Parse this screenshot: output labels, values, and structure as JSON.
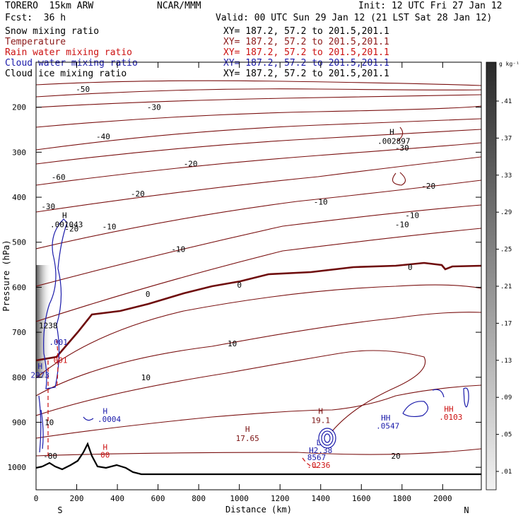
{
  "header": {
    "model": "TORERO  15km ARW",
    "center": "NCAR/MMM",
    "init": "Init: 12 UTC Fri 27 Jan 12",
    "fcst": "Fcst:  36 h",
    "valid": "Valid: 00 UTC Sun 29 Jan 12 (21 LST Sat 28 Jan 12)"
  },
  "fields": [
    {
      "name": "Snow mixing ratio",
      "color": "#000000",
      "xy": "XY= 187.2, 57.2 to 201.5,201.1"
    },
    {
      "name": "Temperature",
      "color": "#8b1a1a",
      "xy": "XY= 187.2, 57.2 to 201.5,201.1"
    },
    {
      "name": "Rain water mixing ratio",
      "color": "#cc1111",
      "xy": "XY= 187.2, 57.2 to 201.5,201.1"
    },
    {
      "name": "Cloud water mixing ratio",
      "color": "#1a1aaa",
      "xy": "XY= 187.2, 57.2 to 201.5,201.1"
    },
    {
      "name": "Cloud ice mixing ratio",
      "color": "#000000",
      "xy": "XY= 187.2, 57.2 to 201.5,201.1"
    }
  ],
  "colors": {
    "temperature": "#7a1010",
    "freezing": "#6e0c0c",
    "cloud_water": "#1a1aaa",
    "rain": "#cc1111",
    "terrain": "#000000"
  },
  "chart_data": {
    "type": "cross-section",
    "xlabel": "Distance (km)",
    "ylabel": "Pressure (hPa)",
    "xlim": [
      0,
      2190
    ],
    "ylim": [
      1050,
      100
    ],
    "xticks": [
      0,
      200,
      400,
      600,
      800,
      1000,
      1200,
      1400,
      1600,
      1800,
      2000
    ],
    "yticks": [
      200,
      300,
      400,
      500,
      600,
      700,
      800,
      900,
      1000
    ],
    "left_end": "S",
    "right_end": "N",
    "colorbar": {
      "unit": "g kg⁻¹",
      "ticks": [
        ".41",
        ".37",
        ".33",
        ".29",
        ".25",
        ".21",
        ".17",
        ".13",
        ".09",
        ".05",
        ".01"
      ]
    },
    "isotherm_labels": [
      {
        "x": 70,
        "p": 975,
        "t": "-80"
      },
      {
        "x": 110,
        "p": 355,
        "t": "-60"
      },
      {
        "x": 330,
        "p": 265,
        "t": "-40"
      },
      {
        "x": 230,
        "p": 160,
        "t": "-50"
      },
      {
        "x": 580,
        "p": 200,
        "t": "-30"
      },
      {
        "x": 60,
        "p": 420,
        "t": "-30"
      },
      {
        "x": 760,
        "p": 325,
        "t": "-20"
      },
      {
        "x": 500,
        "p": 392,
        "t": "-20"
      },
      {
        "x": 1930,
        "p": 375,
        "t": "-20"
      },
      {
        "x": 1800,
        "p": 290,
        "t": "-30"
      },
      {
        "x": 360,
        "p": 465,
        "t": "-10"
      },
      {
        "x": 1800,
        "p": 460,
        "t": "-10"
      },
      {
        "x": 700,
        "p": 515,
        "t": "-10"
      },
      {
        "x": 1850,
        "p": 440,
        "t": "-10"
      },
      {
        "x": 1400,
        "p": 410,
        "t": "-10"
      },
      {
        "x": 175,
        "p": 470,
        "t": "-20"
      },
      {
        "x": 1000,
        "p": 595,
        "t": "0"
      },
      {
        "x": 1840,
        "p": 555,
        "t": "0"
      },
      {
        "x": 550,
        "p": 615,
        "t": "0"
      },
      {
        "x": 965,
        "p": 725,
        "t": "10"
      },
      {
        "x": 540,
        "p": 800,
        "t": "10"
      },
      {
        "x": 65,
        "p": 900,
        "t": "10"
      },
      {
        "x": 1770,
        "p": 975,
        "t": "20"
      }
    ],
    "annotations": [
      {
        "x": 1040,
        "p": 915,
        "t": "H",
        "c": "#7a1010"
      },
      {
        "x": 1040,
        "p": 935,
        "t": "17.65",
        "c": "#7a1010"
      },
      {
        "x": 1400,
        "p": 875,
        "t": "H",
        "c": "#7a1010"
      },
      {
        "x": 1400,
        "p": 895,
        "t": "19.1",
        "c": "#7a1010"
      },
      {
        "x": 1750,
        "p": 255,
        "t": "H",
        "c": "#000000"
      },
      {
        "x": 1760,
        "p": 275,
        "t": ".002897",
        "c": "#000000"
      },
      {
        "x": 140,
        "p": 440,
        "t": "H",
        "c": "#000000"
      },
      {
        "x": 150,
        "p": 460,
        "t": ".001043",
        "c": "#000000"
      },
      {
        "x": 60,
        "p": 685,
        "t": "1238",
        "c": "#000000"
      },
      {
        "x": 110,
        "p": 722,
        "t": ".001",
        "c": "#1a1aaa"
      },
      {
        "x": 120,
        "p": 762,
        "t": "001",
        "c": "#cc1111"
      },
      {
        "x": 20,
        "p": 775,
        "t": "H",
        "c": "#1a1aaa"
      },
      {
        "x": 20,
        "p": 795,
        "t": "2973",
        "c": "#1a1aaa"
      },
      {
        "x": 340,
        "p": 875,
        "t": "H",
        "c": "#1a1aaa"
      },
      {
        "x": 360,
        "p": 893,
        "t": ".0004",
        "c": "#1a1aaa"
      },
      {
        "x": 340,
        "p": 955,
        "t": "H",
        "c": "#cc1111"
      },
      {
        "x": 340,
        "p": 972,
        "t": "00",
        "c": "#cc1111"
      },
      {
        "x": 1390,
        "p": 945,
        "t": "L",
        "c": "#1a1aaa"
      },
      {
        "x": 1400,
        "p": 962,
        "t": "H2.38",
        "c": "#1a1aaa"
      },
      {
        "x": 1380,
        "p": 978,
        "t": "8567",
        "c": "#1a1aaa"
      },
      {
        "x": 1390,
        "p": 995,
        "t": ".0236",
        "c": "#cc1111"
      },
      {
        "x": 1720,
        "p": 890,
        "t": "HH",
        "c": "#1a1aaa"
      },
      {
        "x": 1730,
        "p": 908,
        "t": ".0547",
        "c": "#1a1aaa"
      },
      {
        "x": 2030,
        "p": 870,
        "t": "HH",
        "c": "#cc1111"
      },
      {
        "x": 2040,
        "p": 888,
        "t": ".0103",
        "c": "#cc1111"
      }
    ]
  }
}
